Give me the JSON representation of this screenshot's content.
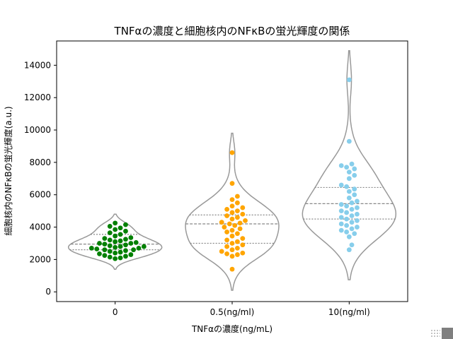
{
  "chart_data": {
    "type": "violin_swarm",
    "title": "TNFαの濃度と細胞核内のNFκBの蛍光輝度の関係",
    "xlabel": "TNFαの濃度(ng/mL)",
    "ylabel": "細胞核内のNFκBの蛍光輝度(a.u.)",
    "categories": [
      "0",
      "0.5(ng/ml)",
      "10(ng/ml)"
    ],
    "yticks": [
      0,
      2000,
      4000,
      6000,
      8000,
      10000,
      12000,
      14000
    ],
    "ylim": [
      -600,
      15500
    ],
    "grid": false,
    "colors": [
      "#008000",
      "#ffa500",
      "#87ceeb"
    ],
    "violin_color": "#999999",
    "series": [
      {
        "category": "0",
        "color": "#008000",
        "quartiles": [
          2600,
          2950,
          3550
        ],
        "kde_range": [
          1400,
          4800
        ],
        "points": [
          2050,
          2100,
          2150,
          2200,
          2250,
          2300,
          2350,
          2400,
          2450,
          2500,
          2550,
          2600,
          2600,
          2650,
          2700,
          2700,
          2750,
          2800,
          2800,
          2850,
          2900,
          2950,
          3000,
          3000,
          3050,
          3100,
          3150,
          3200,
          3250,
          3300,
          3350,
          3450,
          3550,
          3650,
          3750,
          3850,
          3950,
          4050,
          4150,
          4250
        ]
      },
      {
        "category": "0.5(ng/ml)",
        "color": "#ffa500",
        "quartiles": [
          3000,
          4200,
          4750
        ],
        "kde_range": [
          100,
          9800
        ],
        "points": [
          1400,
          2200,
          2300,
          2350,
          2400,
          2500,
          2600,
          2700,
          2800,
          2900,
          3000,
          3100,
          3200,
          3300,
          3450,
          3600,
          3700,
          3800,
          3900,
          4000,
          4100,
          4200,
          4250,
          4300,
          4400,
          4500,
          4600,
          4700,
          4800,
          4900,
          5000,
          5100,
          5200,
          5300,
          5500,
          5700,
          5900,
          6700,
          8600
        ]
      },
      {
        "category": "10(ng/ml)",
        "color": "#87ceeb",
        "quartiles": [
          4500,
          5450,
          6450
        ],
        "kde_range": [
          750,
          14900
        ],
        "points": [
          2600,
          2900,
          3400,
          3600,
          3700,
          3800,
          3900,
          4000,
          4100,
          4200,
          4300,
          4400,
          4500,
          4600,
          4700,
          4800,
          4900,
          5000,
          5100,
          5200,
          5300,
          5400,
          5500,
          5600,
          5800,
          6000,
          6200,
          6350,
          6500,
          6600,
          7000,
          7200,
          7400,
          7600,
          7700,
          7800,
          7900,
          9300,
          13100
        ]
      }
    ]
  }
}
